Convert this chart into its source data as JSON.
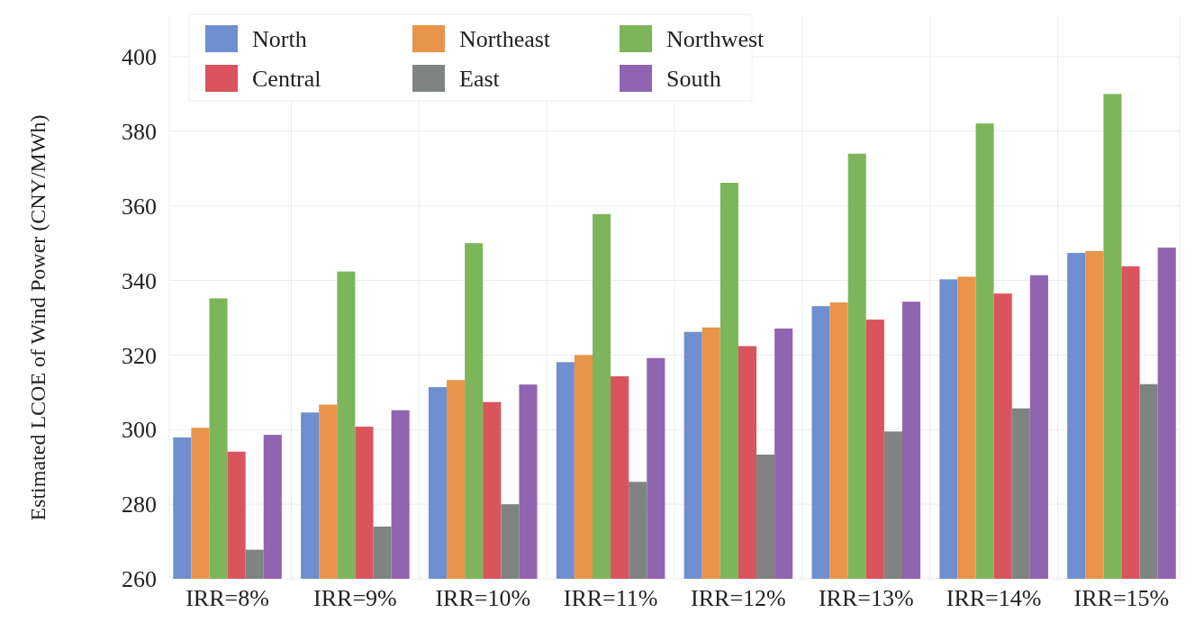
{
  "chart_data": {
    "type": "bar",
    "ylabel": "Estimated LCOE of Wind Power (CNY/MWh)",
    "categories": [
      "IRR=8%",
      "IRR=9%",
      "IRR=10%",
      "IRR=11%",
      "IRR=12%",
      "IRR=13%",
      "IRR=14%",
      "IRR=15%"
    ],
    "series": [
      {
        "name": "North",
        "color": "#6f8fd0",
        "values": [
          297.9,
          304.6,
          311.4,
          318.1,
          326.2,
          333.1,
          340.3,
          347.4
        ]
      },
      {
        "name": "Northeast",
        "color": "#e8944a",
        "values": [
          300.5,
          306.7,
          313.3,
          320,
          327.4,
          334.1,
          341,
          347.9
        ]
      },
      {
        "name": "Northwest",
        "color": "#7db65a",
        "values": [
          335.2,
          342.4,
          350,
          357.8,
          366.2,
          374,
          382.1,
          390
        ]
      },
      {
        "name": "Central",
        "color": "#d9545c",
        "values": [
          294.1,
          300.8,
          307.4,
          314.3,
          322.4,
          329.5,
          336.5,
          343.8
        ]
      },
      {
        "name": "East",
        "color": "#7f8483",
        "values": [
          267.8,
          274,
          280,
          286,
          293.3,
          299.5,
          305.7,
          312.2
        ]
      },
      {
        "name": "South",
        "color": "#9064b0",
        "values": [
          298.6,
          305.2,
          312.1,
          319.2,
          327.1,
          334.3,
          341.4,
          348.8
        ]
      }
    ],
    "ylim": [
      260,
      400
    ],
    "yticks": [
      260,
      280,
      300,
      320,
      340,
      360,
      380,
      400
    ],
    "grid": true,
    "legend": "top left"
  }
}
